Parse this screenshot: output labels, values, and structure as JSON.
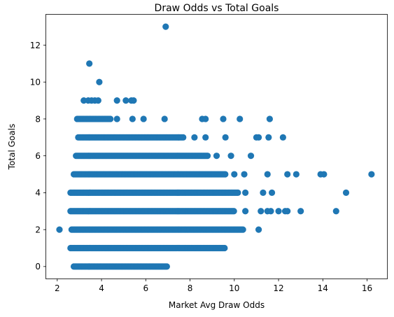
{
  "chart_data": {
    "type": "scatter",
    "title": "Draw Odds vs Total Goals",
    "xlabel": "Market Avg Draw Odds",
    "ylabel": "Total Goals",
    "xlim": [
      1.5,
      16.9
    ],
    "ylim": [
      -0.65,
      13.65
    ],
    "xticks": [
      2,
      4,
      6,
      8,
      10,
      12,
      14,
      16
    ],
    "yticks": [
      0,
      2,
      4,
      6,
      8,
      10,
      12
    ],
    "grid": false,
    "legend": "none",
    "color": "#1f77b4",
    "dense_ranges": [
      {
        "y": 0,
        "x_from": 2.75,
        "x_to": 7.0
      },
      {
        "y": 1,
        "x_from": 2.6,
        "x_to": 9.6
      },
      {
        "y": 2,
        "x_from": 2.65,
        "x_to": 10.4
      },
      {
        "y": 3,
        "x_from": 2.6,
        "x_to": 10.0
      },
      {
        "y": 4,
        "x_from": 2.6,
        "x_to": 10.2
      },
      {
        "y": 5,
        "x_from": 2.75,
        "x_to": 9.6
      },
      {
        "y": 6,
        "x_from": 2.85,
        "x_to": 8.8
      },
      {
        "y": 7,
        "x_from": 2.95,
        "x_to": 7.7
      },
      {
        "y": 8,
        "x_from": 2.9,
        "x_to": 4.4
      }
    ],
    "points": [
      {
        "x": 6.9,
        "y": 13
      },
      {
        "x": 3.45,
        "y": 11
      },
      {
        "x": 3.9,
        "y": 10
      },
      {
        "x": 3.2,
        "y": 9
      },
      {
        "x": 3.4,
        "y": 9
      },
      {
        "x": 3.55,
        "y": 9
      },
      {
        "x": 3.7,
        "y": 9
      },
      {
        "x": 3.85,
        "y": 9
      },
      {
        "x": 4.7,
        "y": 9
      },
      {
        "x": 5.1,
        "y": 9
      },
      {
        "x": 5.35,
        "y": 9
      },
      {
        "x": 5.45,
        "y": 9
      },
      {
        "x": 4.7,
        "y": 8
      },
      {
        "x": 5.4,
        "y": 8
      },
      {
        "x": 5.9,
        "y": 8
      },
      {
        "x": 6.85,
        "y": 8
      },
      {
        "x": 8.55,
        "y": 8
      },
      {
        "x": 8.7,
        "y": 8
      },
      {
        "x": 9.5,
        "y": 8
      },
      {
        "x": 10.25,
        "y": 8
      },
      {
        "x": 11.6,
        "y": 8
      },
      {
        "x": 8.2,
        "y": 7
      },
      {
        "x": 8.7,
        "y": 7
      },
      {
        "x": 9.6,
        "y": 7
      },
      {
        "x": 11.0,
        "y": 7
      },
      {
        "x": 11.1,
        "y": 7
      },
      {
        "x": 11.55,
        "y": 7
      },
      {
        "x": 12.2,
        "y": 7
      },
      {
        "x": 9.2,
        "y": 6
      },
      {
        "x": 9.85,
        "y": 6
      },
      {
        "x": 10.75,
        "y": 6
      },
      {
        "x": 10.0,
        "y": 5
      },
      {
        "x": 10.45,
        "y": 5
      },
      {
        "x": 11.5,
        "y": 5
      },
      {
        "x": 12.4,
        "y": 5
      },
      {
        "x": 12.8,
        "y": 5
      },
      {
        "x": 13.9,
        "y": 5
      },
      {
        "x": 14.05,
        "y": 5
      },
      {
        "x": 16.2,
        "y": 5
      },
      {
        "x": 10.5,
        "y": 4
      },
      {
        "x": 11.3,
        "y": 4
      },
      {
        "x": 11.7,
        "y": 4
      },
      {
        "x": 15.05,
        "y": 4
      },
      {
        "x": 10.5,
        "y": 3
      },
      {
        "x": 11.2,
        "y": 3
      },
      {
        "x": 11.5,
        "y": 3
      },
      {
        "x": 11.65,
        "y": 3
      },
      {
        "x": 12.0,
        "y": 3
      },
      {
        "x": 12.3,
        "y": 3
      },
      {
        "x": 12.4,
        "y": 3
      },
      {
        "x": 13.0,
        "y": 3
      },
      {
        "x": 14.6,
        "y": 3
      },
      {
        "x": 2.1,
        "y": 2
      },
      {
        "x": 11.1,
        "y": 2
      }
    ]
  }
}
